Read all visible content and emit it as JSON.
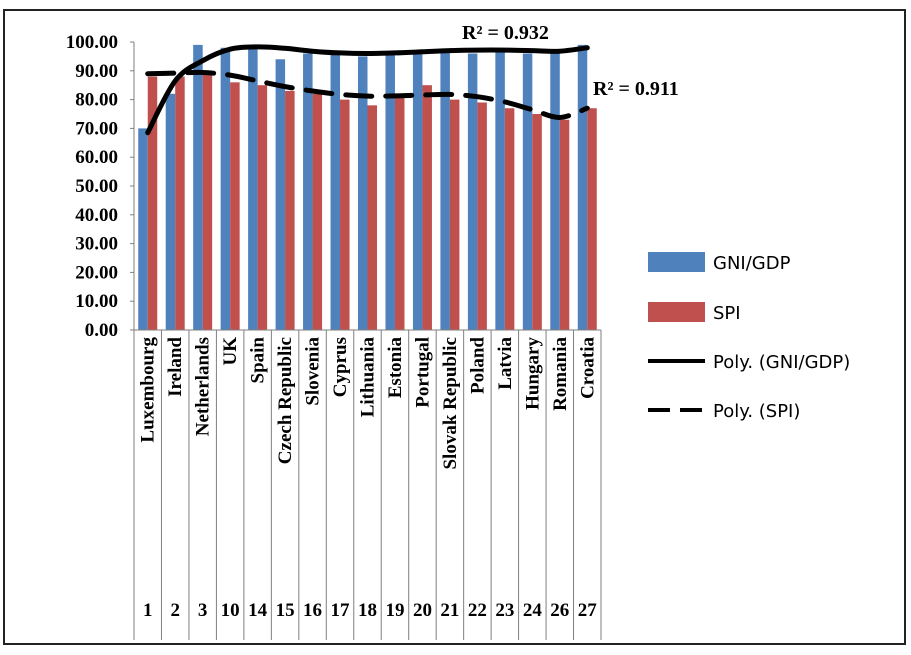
{
  "chart_data": {
    "type": "bar",
    "title": "",
    "xlabel": "",
    "ylabel": "",
    "ylim": [
      0,
      100
    ],
    "yticks": [
      "100.00",
      "90.00",
      "80.00",
      "70.00",
      "60.00",
      "50.00",
      "40.00",
      "30.00",
      "20.00",
      "10.00",
      "0.00"
    ],
    "grid": false,
    "legend_position": "right",
    "categories": [
      "Luxembourg",
      "Ireland",
      "Netherlands",
      "UK",
      "Spain",
      "Czech Republic",
      "Slovenia",
      "Cyprus",
      "Lithuania",
      "Estonia",
      "Portugal",
      "Slovak Republic",
      "Poland",
      "Latvia",
      "Hungary",
      "Romania",
      "Croatia"
    ],
    "ranks": [
      "1",
      "2",
      "3",
      "10",
      "14",
      "15",
      "16",
      "17",
      "18",
      "19",
      "20",
      "21",
      "22",
      "23",
      "24",
      "26",
      "27"
    ],
    "series": [
      {
        "name": "GNI/GDP",
        "color": "#4f81bd",
        "values": [
          70,
          82,
          99,
          98,
          98,
          94,
          96,
          96,
          95,
          96,
          96,
          97,
          96,
          98,
          96,
          96,
          99
        ]
      },
      {
        "name": "SPI",
        "color": "#c0504d",
        "values": [
          88,
          88,
          89,
          86,
          85,
          83,
          82,
          80,
          78,
          82,
          85,
          80,
          79,
          77,
          75,
          73,
          77
        ]
      }
    ],
    "trendlines": [
      {
        "name": "Poly. (GNI/GDP)",
        "style": "solid",
        "r2_label": "R² = 0.932",
        "values": [
          68.5,
          86.5,
          93.5,
          97.5,
          98.3,
          97.8,
          96.8,
          96.2,
          96.0,
          96.2,
          96.6,
          97.0,
          97.2,
          97.2,
          97.0,
          96.8,
          98.0
        ]
      },
      {
        "name": "Poly. (SPI)",
        "style": "dashed",
        "r2_label": "R² = 0.911",
        "values": [
          89.0,
          89.2,
          89.4,
          88.5,
          86.5,
          84.5,
          83.0,
          81.8,
          81.2,
          81.3,
          81.6,
          81.8,
          81.0,
          79.2,
          76.5,
          73.8,
          77.0
        ]
      }
    ]
  }
}
